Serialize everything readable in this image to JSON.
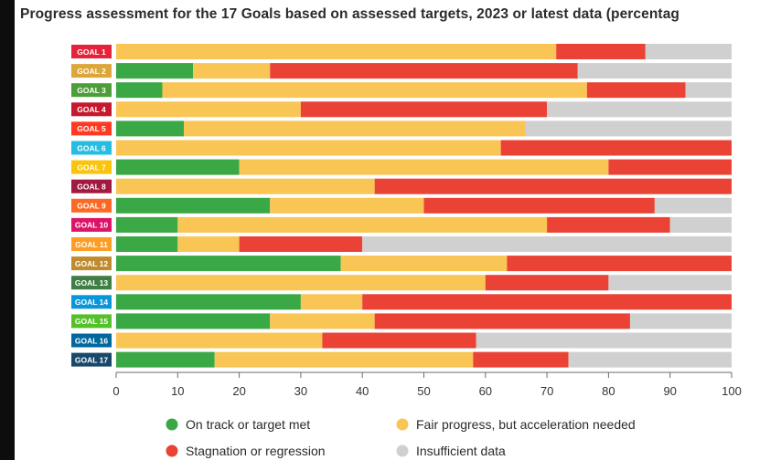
{
  "chart_data": {
    "type": "bar",
    "stacked": true,
    "orientation": "horizontal",
    "title": "Progress assessment for the 17 Goals based on assessed targets, 2023 or latest data (percentag",
    "xlabel": "",
    "ylabel": "",
    "xlim": [
      0,
      100
    ],
    "x_ticks": [
      "0",
      "10",
      "20",
      "30",
      "40",
      "50",
      "60",
      "70",
      "80",
      "90",
      "100"
    ],
    "grid": false,
    "legend_position": "bottom",
    "categories": [
      "GOAL 1",
      "GOAL 2",
      "GOAL 3",
      "GOAL 4",
      "GOAL 5",
      "GOAL 6",
      "GOAL 7",
      "GOAL 8",
      "GOAL 9",
      "GOAL 10",
      "GOAL 11",
      "GOAL 12",
      "GOAL 13",
      "GOAL 14",
      "GOAL 15",
      "GOAL 16",
      "GOAL 17"
    ],
    "category_colors": [
      "#e5243b",
      "#dda63a",
      "#4c9f38",
      "#c5192d",
      "#ff3a21",
      "#26bde2",
      "#fcc30b",
      "#a21942",
      "#fd6925",
      "#dd1367",
      "#fd9d24",
      "#bf8b2e",
      "#3f7e44",
      "#0a97d9",
      "#56c02b",
      "#00689d",
      "#19486a"
    ],
    "series": [
      {
        "name": "On track or target met",
        "color": "#3aa845",
        "values": [
          0,
          12.5,
          7.5,
          0,
          11,
          0,
          20,
          0,
          25,
          10,
          10,
          36.5,
          0,
          30,
          25,
          0,
          16
        ]
      },
      {
        "name": "Fair progress, but acceleration needed",
        "color": "#f9c555",
        "values": [
          71.5,
          12.5,
          69,
          30,
          55.5,
          62.5,
          60,
          42,
          25,
          60,
          10,
          27,
          60,
          10,
          17,
          33.5,
          42
        ]
      },
      {
        "name": "Stagnation or regression",
        "color": "#ea4335",
        "values": [
          14.5,
          50,
          16,
          40,
          0,
          37.5,
          20,
          58,
          37.5,
          20,
          20,
          36.5,
          20,
          60,
          41.5,
          25,
          15.5
        ]
      },
      {
        "name": "Insufficient data",
        "color": "#d0d0d0",
        "values": [
          14,
          25,
          7.5,
          30,
          33.5,
          0,
          0,
          0,
          12.5,
          10,
          60,
          0,
          20,
          0,
          16.5,
          41.5,
          26.5
        ]
      }
    ]
  }
}
